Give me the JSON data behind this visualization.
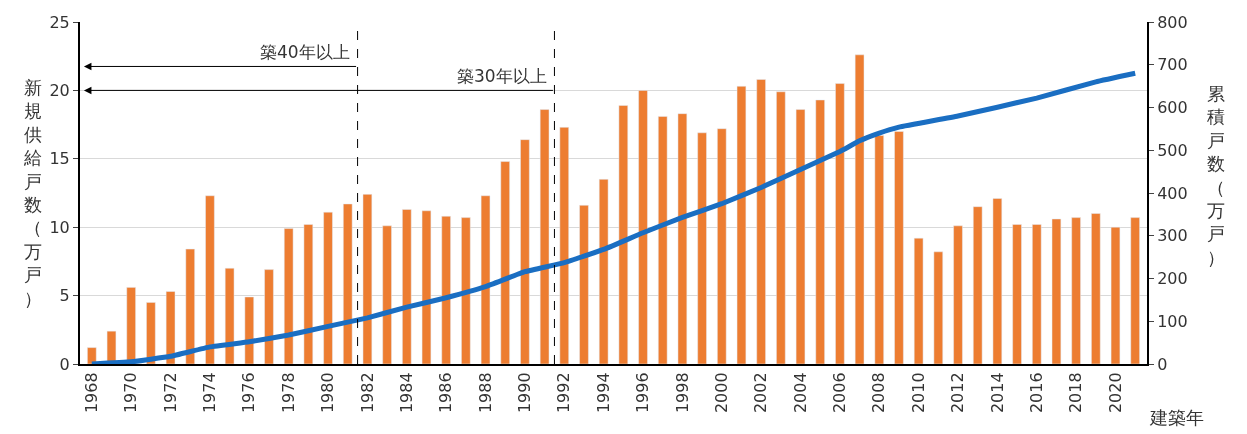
{
  "chart_data": {
    "type": "bar",
    "xlabel": "建築年",
    "ylabel": "新規供給戸数（万戸）",
    "y2label": "累積戸数（万戸）",
    "x": [
      1968,
      1969,
      1970,
      1971,
      1972,
      1973,
      1974,
      1975,
      1976,
      1977,
      1978,
      1979,
      1980,
      1981,
      1982,
      1983,
      1984,
      1985,
      1986,
      1987,
      1988,
      1989,
      1990,
      1991,
      1992,
      1993,
      1994,
      1995,
      1996,
      1997,
      1998,
      1999,
      2000,
      2001,
      2002,
      2003,
      2004,
      2005,
      2006,
      2007,
      2008,
      2009,
      2010,
      2011,
      2012,
      2013,
      2014,
      2015,
      2016,
      2017,
      2018,
      2019,
      2020,
      2021
    ],
    "series": [
      {
        "color": "#ed7d31",
        "values": [
          1.2,
          2.4,
          5.6,
          4.5,
          5.3,
          8.4,
          12.3,
          7.0,
          4.9,
          6.9,
          9.9,
          10.2,
          11.1,
          11.7,
          12.4,
          10.1,
          11.3,
          11.2,
          10.8,
          10.7,
          12.3,
          14.8,
          16.4,
          18.6,
          17.3,
          11.6,
          13.5,
          18.9,
          20.0,
          18.1,
          18.3,
          16.9,
          17.2,
          20.3,
          20.8,
          19.9,
          18.6,
          19.3,
          20.5,
          22.6,
          16.7,
          17.0,
          9.2,
          8.2,
          10.1,
          11.5,
          12.1,
          10.2,
          10.2,
          10.6,
          10.7,
          11.0,
          10.0,
          10.7
        ]
      },
      {
        "type": "line",
        "axis": "y2",
        "color": "#1a6ec2",
        "x": [
          1968,
          1970,
          1972,
          1974,
          1976,
          1978,
          1980,
          1982,
          1984,
          1986,
          1988,
          1990,
          1992,
          1994,
          1996,
          1998,
          2000,
          2002,
          2004,
          2006,
          2007,
          2008,
          2009,
          2012,
          2016,
          2019,
          2021
        ],
        "values": [
          0,
          5,
          18,
          40,
          52,
          68,
          88,
          108,
          133,
          155,
          181,
          216,
          237,
          268,
          307,
          343,
          375,
          413,
          455,
          497,
          522,
          540,
          554,
          580,
          622,
          660,
          680
        ]
      }
    ],
    "xlim": [
      1967.4,
      2021.6
    ],
    "xticks": [
      1968,
      1970,
      1972,
      1974,
      1976,
      1978,
      1980,
      1982,
      1984,
      1986,
      1988,
      1990,
      1992,
      1994,
      1996,
      1998,
      2000,
      2002,
      2004,
      2006,
      2008,
      2010,
      2012,
      2014,
      2016,
      2018,
      2020
    ],
    "ylim": [
      0,
      25
    ],
    "yticks": [
      0,
      5,
      10,
      15,
      20,
      25
    ],
    "y2lim": [
      0,
      800
    ],
    "y2ticks": [
      0,
      100,
      200,
      300,
      400,
      500,
      600,
      700,
      800
    ],
    "ref_lines": [
      {
        "axis": "x",
        "value": 1981.5,
        "label": "築40年以上",
        "line_style": "dashed",
        "color": "#000000"
      },
      {
        "axis": "x",
        "value": 1991.5,
        "label": "築30年以上",
        "line_style": "dashed",
        "color": "#000000"
      }
    ],
    "grid": "y"
  }
}
